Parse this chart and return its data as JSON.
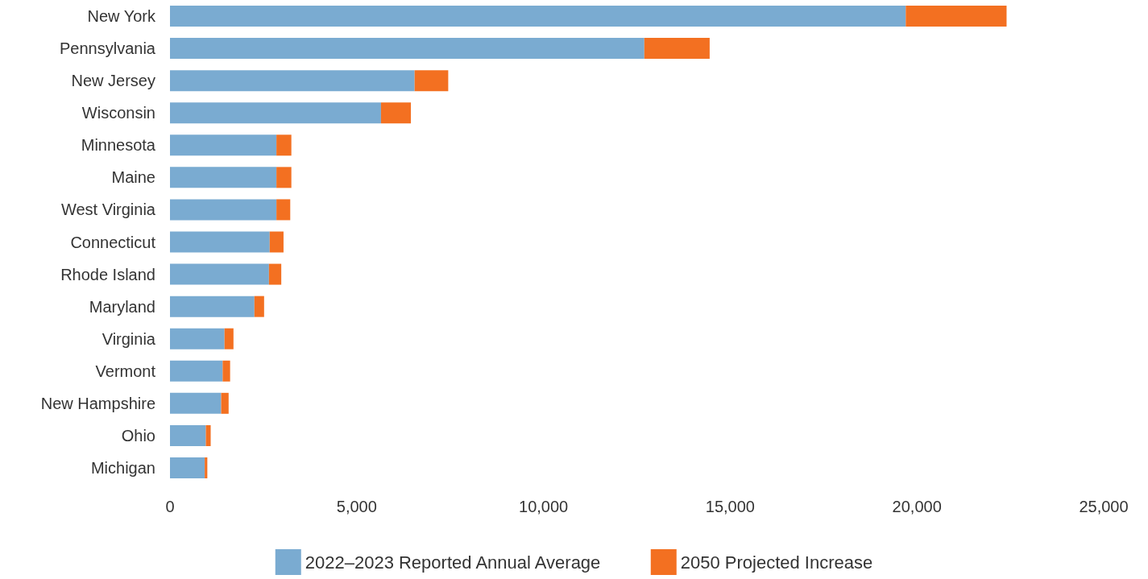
{
  "chart_data": {
    "type": "bar",
    "orientation": "horizontal",
    "stacked": true,
    "categories": [
      "New York",
      "Pennsylvania",
      "New Jersey",
      "Wisconsin",
      "Minnesota",
      "Maine",
      "West Virginia",
      "Connecticut",
      "Rhode Island",
      "Maryland",
      "Virginia",
      "Vermont",
      "New Hampshire",
      "Ohio",
      "Michigan"
    ],
    "series": [
      {
        "name": "2022–2023 Reported Annual Average",
        "color": "#7aabd1",
        "values": [
          19700,
          12700,
          6550,
          5650,
          2850,
          2850,
          2850,
          2670,
          2650,
          2260,
          1460,
          1410,
          1370,
          960,
          930
        ]
      },
      {
        "name": "2050 Projected Increase",
        "color": "#f37021",
        "values": [
          2700,
          1750,
          900,
          800,
          400,
          400,
          370,
          370,
          330,
          260,
          240,
          200,
          200,
          130,
          70
        ]
      }
    ],
    "xlim": [
      0,
      25000
    ],
    "xticks": [
      0,
      {
        "value": 5000,
        "label": "5,000"
      },
      {
        "value": 10000,
        "label": "10,000"
      },
      {
        "value": 15000,
        "label": "15,000"
      },
      {
        "value": 20000,
        "label": "20,000"
      },
      {
        "value": 25000,
        "label": "25,000"
      }
    ],
    "grid": false,
    "legend": "bottom"
  }
}
